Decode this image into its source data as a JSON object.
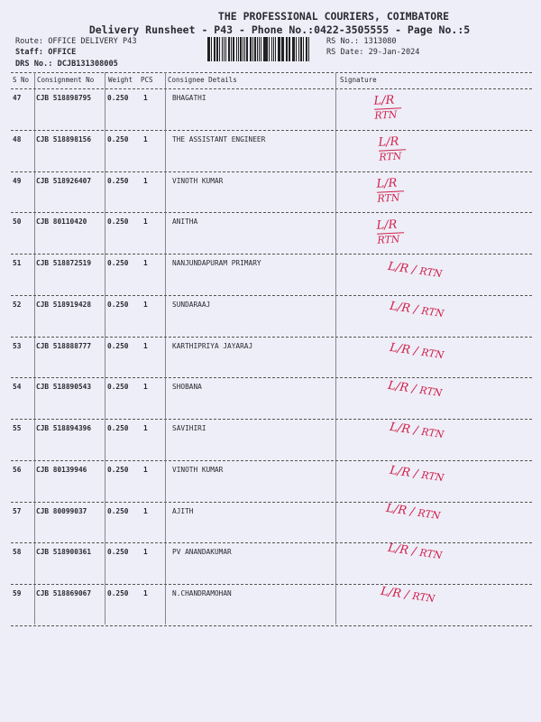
{
  "header": {
    "company": "THE PROFESSIONAL COURIERS, COIMBATORE",
    "subtitle": "Delivery Runsheet - P43 - Phone No.:0422-3505555 - Page No.:5",
    "route": "Route: OFFICE DELIVERY P43",
    "staff": "Staff: OFFICE",
    "drs_no": "DRS No.: DCJB131308005",
    "rs_no": "RS No.: 1313080",
    "rs_date": "RS Date: 29-Jan-2024"
  },
  "columns": [
    "S No",
    "Consignment No",
    "Weight",
    "PCS",
    "Consignee Details",
    "Signature"
  ],
  "rows": [
    {
      "sno": "47",
      "cn": "CJB 518898795",
      "weight": "0.250",
      "pcs": "1",
      "consignee": "BHAGATHI",
      "sig_top": "L/R",
      "sig_bottom": "RTN"
    },
    {
      "sno": "48",
      "cn": "CJB 518898156",
      "weight": "0.250",
      "pcs": "1",
      "consignee": "THE ASSISTANT ENGINEER",
      "sig_top": "L/R",
      "sig_bottom": "RTN"
    },
    {
      "sno": "49",
      "cn": "CJB 518926407",
      "weight": "0.250",
      "pcs": "1",
      "consignee": "VINOTH KUMAR",
      "sig_top": "L/R",
      "sig_bottom": "RTN"
    },
    {
      "sno": "50",
      "cn": "CJB 80110420",
      "weight": "0.250",
      "pcs": "1",
      "consignee": "ANITHA",
      "sig_top": "L/R",
      "sig_bottom": "RTN"
    },
    {
      "sno": "51",
      "cn": "CJB 518872519",
      "weight": "0.250",
      "pcs": "1",
      "consignee": "NANJUNDAPURAM PRIMARY",
      "sig_top": "L/R",
      "sig_bottom": "RTN"
    },
    {
      "sno": "52",
      "cn": "CJB 518919428",
      "weight": "0.250",
      "pcs": "1",
      "consignee": "SUNDARAAJ",
      "sig_top": "L/R",
      "sig_bottom": "RTN"
    },
    {
      "sno": "53",
      "cn": "CJB 518888777",
      "weight": "0.250",
      "pcs": "1",
      "consignee": "KARTHIPRIYA JAYARAJ",
      "sig_top": "L/R",
      "sig_bottom": "RTN"
    },
    {
      "sno": "54",
      "cn": "CJB 518890543",
      "weight": "0.250",
      "pcs": "1",
      "consignee": "SHOBANA",
      "sig_top": "L/R",
      "sig_bottom": "RTN"
    },
    {
      "sno": "55",
      "cn": "CJB 518894396",
      "weight": "0.250",
      "pcs": "1",
      "consignee": "SAVIHIRI",
      "sig_top": "L/R",
      "sig_bottom": "RTN"
    },
    {
      "sno": "56",
      "cn": "CJB 80139946",
      "weight": "0.250",
      "pcs": "1",
      "consignee": "VINOTH KUMAR",
      "sig_top": "L/R",
      "sig_bottom": "RTN"
    },
    {
      "sno": "57",
      "cn": "CJB 80099037",
      "weight": "0.250",
      "pcs": "1",
      "consignee": "AJITH",
      "sig_top": "L/R",
      "sig_bottom": "RTN"
    },
    {
      "sno": "58",
      "cn": "CJB 518900361",
      "weight": "0.250",
      "pcs": "1",
      "consignee": "PV ANANDAKUMAR",
      "sig_top": "L/R",
      "sig_bottom": "RTN"
    },
    {
      "sno": "59",
      "cn": "CJB 518869067",
      "weight": "0.250",
      "pcs": "1",
      "consignee": "N.CHANDRAMOHAN",
      "sig_top": "L/R",
      "sig_bottom": "RTN"
    }
  ],
  "colors": {
    "paper": "#eeeef8",
    "ink": "#2a2a33",
    "signature_ink": "#d0204a"
  }
}
